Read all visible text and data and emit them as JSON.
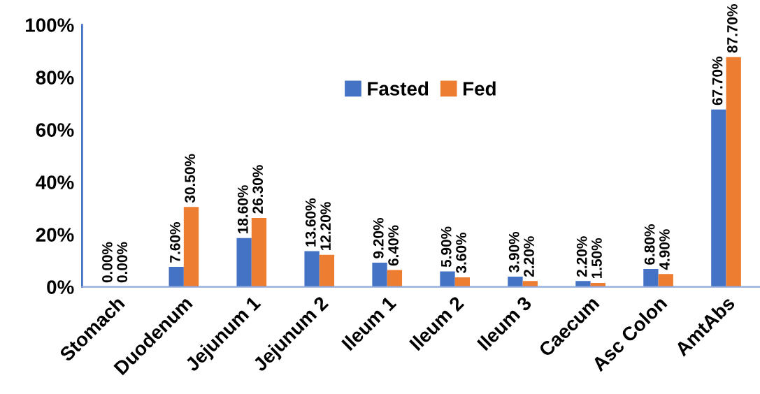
{
  "chart_data": {
    "type": "bar",
    "categories": [
      "Stomach",
      "Duodenum",
      "Jejunum 1",
      "Jejunum 2",
      "Ileum 1",
      "Ileum 2",
      "Ileum 3",
      "Caecum",
      "Asc Colon",
      "AmtAbs"
    ],
    "series": [
      {
        "name": "Fasted",
        "color": "#4472c4",
        "values": [
          0.0,
          7.6,
          18.6,
          13.6,
          9.2,
          5.9,
          3.9,
          2.2,
          6.8,
          67.7
        ],
        "value_labels": [
          "0.00%",
          "7.60%",
          "18.60%",
          "13.60%",
          "9.20%",
          "5.90%",
          "3.90%",
          "2.20%",
          "6.80%",
          "67.70%"
        ]
      },
      {
        "name": "Fed",
        "color": "#ed7d31",
        "values": [
          0.0,
          30.5,
          26.3,
          12.2,
          6.4,
          3.6,
          2.2,
          1.5,
          4.9,
          87.7
        ],
        "value_labels": [
          "0.00%",
          "30.50%",
          "26.30%",
          "12.20%",
          "6.40%",
          "3.60%",
          "2.20%",
          "1.50%",
          "4.90%",
          "87.70%"
        ]
      }
    ],
    "ylim": [
      0,
      100
    ],
    "yticks": [
      {
        "value": 0,
        "label": "0%"
      },
      {
        "value": 20,
        "label": "20%"
      },
      {
        "value": 40,
        "label": "40%"
      },
      {
        "value": 60,
        "label": "60%"
      },
      {
        "value": 80,
        "label": "80%"
      },
      {
        "value": 100,
        "label": "100%"
      }
    ],
    "grid": false,
    "legend": "top"
  }
}
